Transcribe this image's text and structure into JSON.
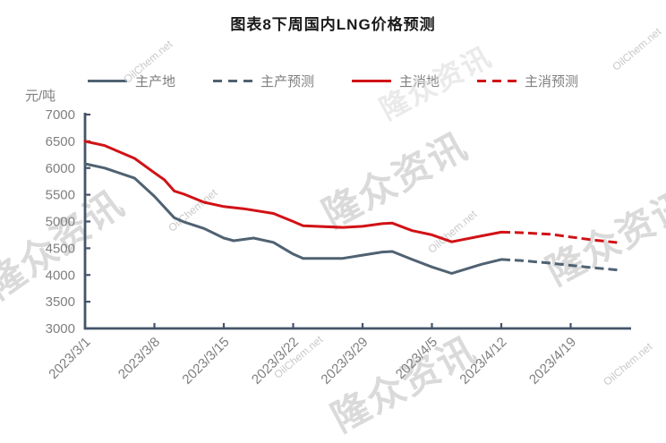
{
  "title": "图表8下周国内LNG价格预测",
  "unit_label": "元/吨",
  "watermark": {
    "brand": "隆众资讯",
    "site": "OilChem.net"
  },
  "colors": {
    "axis": "#44546a",
    "tick_label": "#7f7f7f",
    "title_text": "#1a1a1a",
    "production_series": "#4f6272",
    "consumption_series": "#d11216"
  },
  "legend": [
    {
      "label": "主产地",
      "color": "#4f6272",
      "style": "solid"
    },
    {
      "label": "主产预测",
      "color": "#4f6272",
      "style": "dashed"
    },
    {
      "label": "主消地",
      "color": "#d11216",
      "style": "solid"
    },
    {
      "label": "主消预测",
      "color": "#d11216",
      "style": "dashed"
    }
  ],
  "chart_data": {
    "type": "line",
    "title": "图表8下周国内LNG价格预测",
    "xlabel": "",
    "ylabel": "元/吨",
    "ylim": [
      3000,
      7000
    ],
    "y_ticks": [
      3000,
      3500,
      4000,
      4500,
      5000,
      5500,
      6000,
      6500,
      7000
    ],
    "x_ticks": [
      "2023/3/1",
      "2023/3/8",
      "2023/3/15",
      "2023/3/22",
      "2023/3/29",
      "2023/4/5",
      "2023/4/12",
      "2023/4/19"
    ],
    "x_range": [
      "2023/3/1",
      "2023/4/25"
    ],
    "grid": false,
    "legend_position": "top",
    "series": [
      {
        "name": "主产地",
        "color": "#4f6272",
        "dash": false,
        "points": [
          [
            "2023/3/1",
            6080
          ],
          [
            "2023/3/3",
            6000
          ],
          [
            "2023/3/6",
            5810
          ],
          [
            "2023/3/8",
            5470
          ],
          [
            "2023/3/10",
            5070
          ],
          [
            "2023/3/11",
            4990
          ],
          [
            "2023/3/13",
            4870
          ],
          [
            "2023/3/15",
            4690
          ],
          [
            "2023/3/16",
            4640
          ],
          [
            "2023/3/18",
            4690
          ],
          [
            "2023/3/20",
            4610
          ],
          [
            "2023/3/22",
            4390
          ],
          [
            "2023/3/23",
            4310
          ],
          [
            "2023/3/27",
            4310
          ],
          [
            "2023/3/29",
            4370
          ],
          [
            "2023/3/31",
            4430
          ],
          [
            "2023/4/1",
            4440
          ],
          [
            "2023/4/3",
            4290
          ],
          [
            "2023/4/5",
            4150
          ],
          [
            "2023/4/7",
            4030
          ],
          [
            "2023/4/10",
            4200
          ],
          [
            "2023/4/12",
            4290
          ]
        ]
      },
      {
        "name": "主产预测",
        "color": "#4f6272",
        "dash": true,
        "points": [
          [
            "2023/4/12",
            4290
          ],
          [
            "2023/4/14",
            4270
          ],
          [
            "2023/4/17",
            4220
          ],
          [
            "2023/4/19",
            4180
          ],
          [
            "2023/4/21",
            4140
          ],
          [
            "2023/4/24",
            4090
          ]
        ]
      },
      {
        "name": "主消地",
        "color": "#d11216",
        "dash": false,
        "points": [
          [
            "2023/3/1",
            6500
          ],
          [
            "2023/3/3",
            6420
          ],
          [
            "2023/3/6",
            6180
          ],
          [
            "2023/3/8",
            5910
          ],
          [
            "2023/3/9",
            5780
          ],
          [
            "2023/3/10",
            5570
          ],
          [
            "2023/3/11",
            5510
          ],
          [
            "2023/3/13",
            5360
          ],
          [
            "2023/3/15",
            5280
          ],
          [
            "2023/3/17",
            5240
          ],
          [
            "2023/3/20",
            5150
          ],
          [
            "2023/3/22",
            5000
          ],
          [
            "2023/3/23",
            4920
          ],
          [
            "2023/3/27",
            4890
          ],
          [
            "2023/3/29",
            4910
          ],
          [
            "2023/3/31",
            4960
          ],
          [
            "2023/4/1",
            4970
          ],
          [
            "2023/4/3",
            4830
          ],
          [
            "2023/4/5",
            4750
          ],
          [
            "2023/4/7",
            4620
          ],
          [
            "2023/4/10",
            4730
          ],
          [
            "2023/4/12",
            4800
          ]
        ]
      },
      {
        "name": "主消预测",
        "color": "#d11216",
        "dash": true,
        "points": [
          [
            "2023/4/12",
            4800
          ],
          [
            "2023/4/14",
            4790
          ],
          [
            "2023/4/17",
            4760
          ],
          [
            "2023/4/19",
            4710
          ],
          [
            "2023/4/21",
            4660
          ],
          [
            "2023/4/24",
            4600
          ]
        ]
      }
    ]
  }
}
